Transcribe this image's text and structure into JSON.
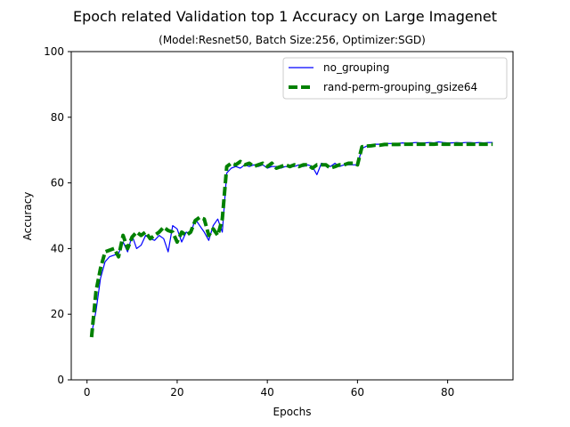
{
  "chart_data": {
    "type": "line",
    "title": "Epoch related Validation top 1 Accuracy on Large Imagenet",
    "subtitle": "(Model:Resnet50, Batch Size:256, Optimizer:SGD)",
    "xlabel": "Epochs",
    "ylabel": "Accuracy",
    "xlim": [
      -3.5,
      94.5
    ],
    "ylim": [
      0,
      100
    ],
    "xticks": [
      0,
      20,
      40,
      60,
      80
    ],
    "yticks": [
      0,
      20,
      40,
      60,
      80,
      100
    ],
    "grid": false,
    "legend_position": "top-right",
    "series": [
      {
        "name": "no_grouping",
        "color": "#0000ff",
        "style": "solid",
        "x": [
          1,
          2,
          3,
          4,
          5,
          6,
          7,
          8,
          9,
          10,
          11,
          12,
          13,
          14,
          15,
          16,
          17,
          18,
          19,
          20,
          21,
          22,
          23,
          24,
          25,
          26,
          27,
          28,
          29,
          30,
          31,
          32,
          33,
          34,
          35,
          36,
          37,
          38,
          39,
          40,
          41,
          42,
          43,
          44,
          45,
          46,
          47,
          48,
          49,
          50,
          51,
          52,
          53,
          54,
          55,
          56,
          57,
          58,
          59,
          60,
          61,
          62,
          63,
          64,
          65,
          66,
          67,
          68,
          69,
          70,
          71,
          72,
          73,
          74,
          75,
          76,
          77,
          78,
          79,
          80,
          81,
          82,
          83,
          84,
          85,
          86,
          87,
          88,
          89,
          90
        ],
        "y": [
          14,
          21,
          31,
          36,
          37.5,
          38,
          38.5,
          42,
          39,
          44,
          40,
          41,
          44,
          43,
          42.5,
          44,
          43,
          39,
          47,
          46,
          42,
          45,
          44.5,
          49,
          47,
          45,
          42.5,
          47,
          49,
          45,
          63,
          64.5,
          65,
          64.5,
          65.5,
          65,
          65.5,
          65,
          65.5,
          64.5,
          65,
          65,
          64.5,
          65,
          65,
          65,
          65.5,
          65,
          65.5,
          65,
          62.5,
          66,
          65.5,
          65,
          66,
          65,
          65.5,
          65.5,
          65.5,
          65.5,
          70.5,
          71.2,
          71.5,
          71.8,
          71.8,
          72,
          72,
          72,
          72,
          72.2,
          72,
          72.2,
          72.3,
          72.2,
          72.2,
          72.3,
          72.2,
          72.5,
          72.3,
          72.2,
          72.2,
          72.3,
          72.2,
          72.3,
          72.3,
          72.2,
          72.3,
          72.2,
          72.3,
          72.3
        ]
      },
      {
        "name": "rand-perm-grouping_gsize64",
        "color": "#008000",
        "style": "dashed",
        "x": [
          1,
          2,
          3,
          4,
          5,
          6,
          7,
          8,
          9,
          10,
          11,
          12,
          13,
          14,
          15,
          16,
          17,
          18,
          19,
          20,
          21,
          22,
          23,
          24,
          25,
          26,
          27,
          28,
          29,
          30,
          31,
          32,
          33,
          34,
          35,
          36,
          37,
          38,
          39,
          40,
          41,
          42,
          43,
          44,
          45,
          46,
          47,
          48,
          49,
          50,
          51,
          52,
          53,
          54,
          55,
          56,
          57,
          58,
          59,
          60,
          61,
          62,
          63,
          64,
          65,
          66,
          67,
          68,
          69,
          70,
          71,
          72,
          73,
          74,
          75,
          76,
          77,
          78,
          79,
          80,
          81,
          82,
          83,
          84,
          85,
          86,
          87,
          88,
          89,
          90
        ],
        "y": [
          13,
          27,
          34,
          39,
          39.5,
          40,
          37.5,
          44,
          40,
          43.5,
          45,
          44,
          45,
          43,
          44,
          45,
          46.5,
          45.5,
          45,
          42,
          45,
          44,
          45,
          48.5,
          49.5,
          49,
          44,
          46,
          44,
          49,
          65,
          66,
          65.5,
          66.5,
          65.5,
          66,
          65,
          65.5,
          66,
          65,
          66,
          64.5,
          65,
          65.5,
          65,
          65.5,
          65,
          65.5,
          65.5,
          64.5,
          65.5,
          65.5,
          65.5,
          64.5,
          65,
          65.5,
          65.5,
          66,
          66,
          65.5,
          71,
          71.2,
          71.3,
          71.5,
          71.5,
          71.7,
          71.7,
          71.7,
          71.7,
          71.8,
          71.8,
          71.8,
          71.8,
          71.8,
          71.8,
          71.8,
          71.8,
          71.9,
          71.8,
          71.8,
          71.8,
          71.8,
          71.8,
          71.8,
          71.8,
          71.8,
          71.8,
          71.8,
          71.8,
          71.8
        ]
      }
    ]
  }
}
